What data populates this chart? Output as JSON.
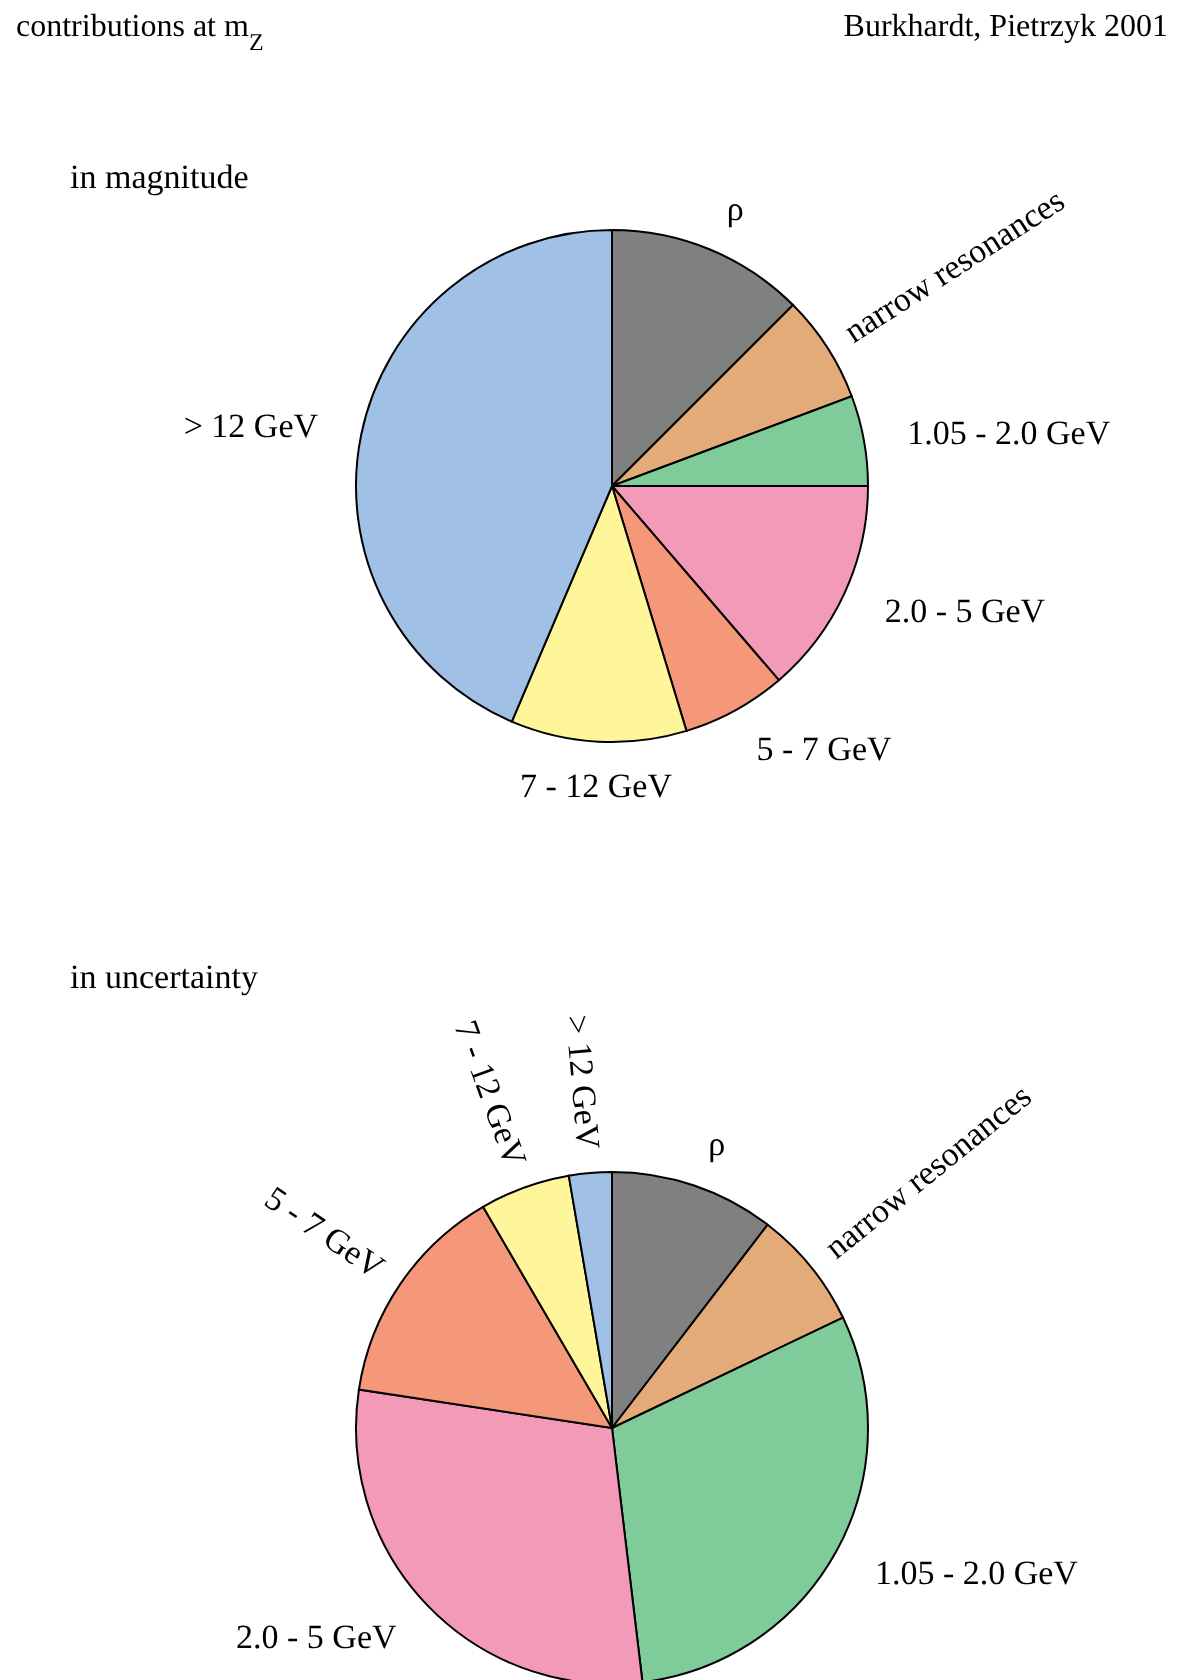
{
  "chart_data": [
    {
      "type": "pie",
      "title": "contributions at m$_{Z}$",
      "subtitle": "in magnitude",
      "annotations": [
        "Burkhardt, Pietrzyk 2001"
      ],
      "categories": [
        "ρ",
        "narrow resonances",
        "1.05 - 2.0 GeV",
        "2.0 - 5 GeV",
        "5 - 7 GeV",
        "7 - 12 GeV",
        "> 12 GeV"
      ],
      "values": [
        12.5,
        6.8,
        5.7,
        13.7,
        6.6,
        11.1,
        43.6
      ],
      "colors": [
        "#808080",
        "#e3aa7a",
        "#80cb9a",
        "#f39ab8",
        "#f59879",
        "#fff59a",
        "#a1c0e6"
      ],
      "legend": false
    },
    {
      "type": "pie",
      "subtitle": "in uncertainty",
      "categories": [
        "ρ",
        "narrow resonances",
        "1.05 - 2.0 GeV",
        "2.0 - 5 GeV",
        "5 - 7 GeV",
        "7 - 12 GeV",
        "> 12 GeV"
      ],
      "values": [
        10.4,
        7.5,
        30.2,
        29.3,
        14.2,
        5.7,
        2.7
      ],
      "colors": [
        "#808080",
        "#e3aa7a",
        "#80cb9a",
        "#f39ab8",
        "#f59879",
        "#fff59a",
        "#a1c0e6"
      ],
      "legend": false
    }
  ]
}
